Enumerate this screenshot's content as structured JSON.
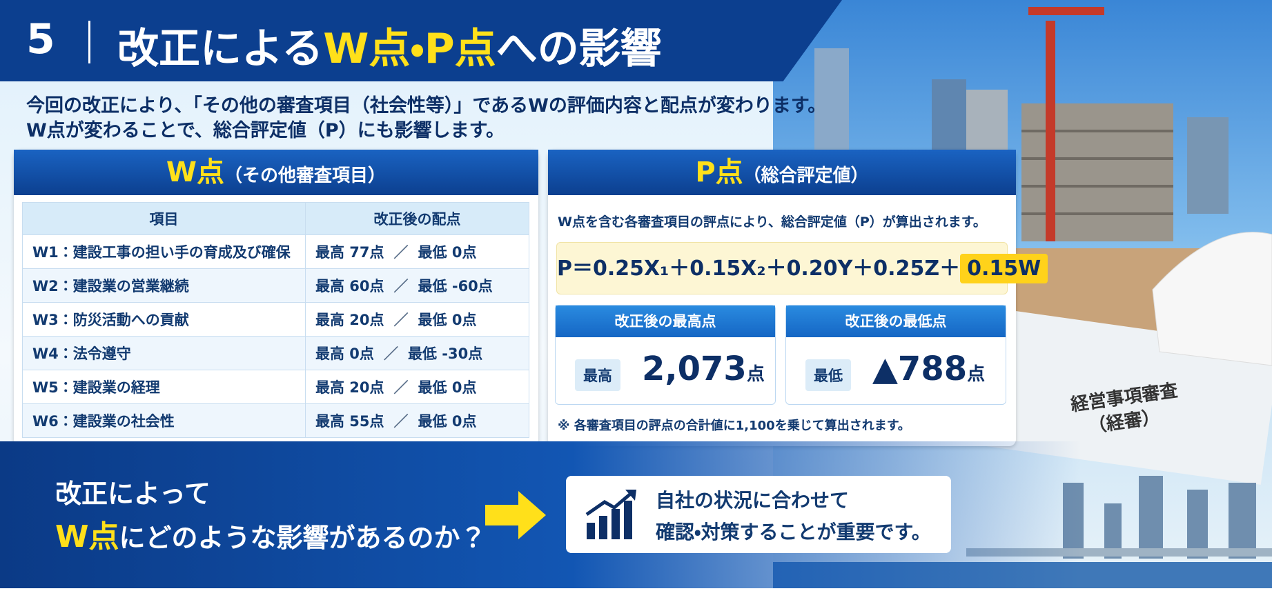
{
  "header": {
    "number": "5",
    "title_parts": [
      "改正による",
      "W点",
      "・",
      "P点",
      "への影響"
    ]
  },
  "intro": [
    "今回の改正により、「その他の審査項目（社会性等）」であるWの評価内容と配点が変わります。",
    "W点が変わることで、総合評定値（P）にも影響します。"
  ],
  "w_panel": {
    "title": "W点",
    "subtitle": "（その他審査項目）",
    "columns": [
      "項目",
      "改正後の配点"
    ],
    "separator": "／",
    "rows": [
      [
        "W1：建設工事の担い手の育成及び確保",
        "最高 77点",
        "最低 0点"
      ],
      [
        "W2：建設業の営業継続",
        "最高 60点",
        "最低 -60点"
      ],
      [
        "W3：防災活動への貢献",
        "最高 20点",
        "最低 0点"
      ],
      [
        "W4：法令遵守",
        "最高 0点",
        "最低 -30点"
      ],
      [
        "W5：建設業の経理",
        "最高 20点",
        "最低 0点"
      ],
      [
        "W6：建設業の社会性",
        "最高 55点",
        "最低 0点"
      ]
    ]
  },
  "p_panel": {
    "title": "P点",
    "subtitle": "（総合評定値）",
    "description": "W点を含む各審査項目の評点により、総合評定値（P）が算出されます。",
    "formula": "P＝0.25X₁＋0.15X₂＋0.20Y＋0.25Z＋",
    "formula_highlight": "0.15W",
    "max_box": {
      "heading": "改正後の最高点",
      "tag": "最高",
      "value": "2,073",
      "unit": "点"
    },
    "min_box": {
      "heading": "改正後の最低点",
      "tag": "最低",
      "value": "▲788",
      "unit": "点"
    },
    "note": "※ 各審査項目の評点の合計値に1,100を乗じて算出されます。"
  },
  "bottom": {
    "question_line1": "改正によって",
    "question_highlight": "W点",
    "question_rest": "にどのような影響があるのか？",
    "message": [
      "自社の状況に合わせて",
      "確認・対策することが重要です。"
    ]
  },
  "photo": {
    "sign": [
      "経営事項審査",
      "（経審）"
    ]
  }
}
